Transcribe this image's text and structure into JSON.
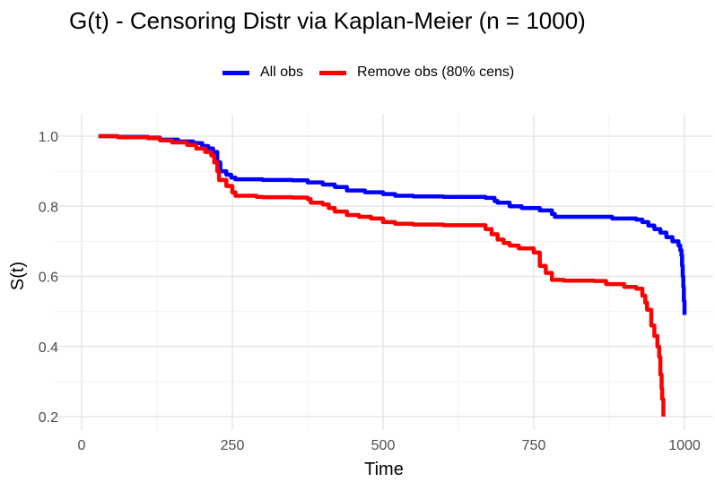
{
  "chart_data": {
    "type": "line",
    "title": "G(t) - Censoring Distr via Kaplan-Meier (n = 1000)",
    "xlabel": "Time",
    "ylabel": "S(t)",
    "xlim": [
      0,
      1000
    ],
    "ylim": [
      0.2,
      1.0
    ],
    "x_ticks": [
      0,
      250,
      500,
      750,
      1000
    ],
    "x_tick_labels": [
      "0",
      "250",
      "500",
      "750",
      "1000"
    ],
    "y_ticks": [
      0.2,
      0.4,
      0.6,
      0.8,
      1.0
    ],
    "y_tick_labels": [
      "0.2",
      "0.4",
      "0.6",
      "0.8",
      "1.0"
    ],
    "grid": true,
    "legend_position": "top",
    "series": [
      {
        "name": "All obs",
        "color": "#0000ff",
        "points": [
          [
            28,
            1.0
          ],
          [
            60,
            0.998
          ],
          [
            110,
            0.996
          ],
          [
            130,
            0.99
          ],
          [
            160,
            0.985
          ],
          [
            185,
            0.98
          ],
          [
            200,
            0.972
          ],
          [
            210,
            0.965
          ],
          [
            218,
            0.955
          ],
          [
            225,
            0.925
          ],
          [
            230,
            0.9
          ],
          [
            240,
            0.89
          ],
          [
            248,
            0.882
          ],
          [
            255,
            0.877
          ],
          [
            300,
            0.875
          ],
          [
            350,
            0.874
          ],
          [
            375,
            0.868
          ],
          [
            400,
            0.862
          ],
          [
            420,
            0.855
          ],
          [
            440,
            0.845
          ],
          [
            470,
            0.84
          ],
          [
            500,
            0.835
          ],
          [
            520,
            0.83
          ],
          [
            550,
            0.828
          ],
          [
            600,
            0.827
          ],
          [
            650,
            0.827
          ],
          [
            670,
            0.824
          ],
          [
            685,
            0.815
          ],
          [
            690,
            0.81
          ],
          [
            710,
            0.8
          ],
          [
            730,
            0.795
          ],
          [
            760,
            0.788
          ],
          [
            780,
            0.778
          ],
          [
            785,
            0.77
          ],
          [
            820,
            0.77
          ],
          [
            860,
            0.77
          ],
          [
            880,
            0.765
          ],
          [
            900,
            0.765
          ],
          [
            920,
            0.762
          ],
          [
            930,
            0.755
          ],
          [
            940,
            0.745
          ],
          [
            950,
            0.735
          ],
          [
            960,
            0.725
          ],
          [
            970,
            0.712
          ],
          [
            980,
            0.7
          ],
          [
            990,
            0.688
          ],
          [
            993,
            0.675
          ],
          [
            995,
            0.66
          ],
          [
            996,
            0.63
          ],
          [
            997,
            0.6
          ],
          [
            998,
            0.57
          ],
          [
            999,
            0.53
          ],
          [
            1000,
            0.49
          ]
        ]
      },
      {
        "name": "Remove obs (80% cens)",
        "color": "#ff0000",
        "points": [
          [
            28,
            1.0
          ],
          [
            60,
            0.997
          ],
          [
            110,
            0.994
          ],
          [
            130,
            0.988
          ],
          [
            150,
            0.982
          ],
          [
            175,
            0.975
          ],
          [
            190,
            0.965
          ],
          [
            205,
            0.955
          ],
          [
            215,
            0.945
          ],
          [
            220,
            0.925
          ],
          [
            225,
            0.9
          ],
          [
            228,
            0.875
          ],
          [
            240,
            0.858
          ],
          [
            250,
            0.84
          ],
          [
            255,
            0.83
          ],
          [
            290,
            0.827
          ],
          [
            300,
            0.826
          ],
          [
            350,
            0.825
          ],
          [
            375,
            0.82
          ],
          [
            380,
            0.81
          ],
          [
            400,
            0.805
          ],
          [
            410,
            0.795
          ],
          [
            420,
            0.785
          ],
          [
            440,
            0.775
          ],
          [
            460,
            0.77
          ],
          [
            480,
            0.765
          ],
          [
            500,
            0.755
          ],
          [
            520,
            0.75
          ],
          [
            550,
            0.748
          ],
          [
            600,
            0.746
          ],
          [
            660,
            0.746
          ],
          [
            670,
            0.735
          ],
          [
            680,
            0.72
          ],
          [
            690,
            0.705
          ],
          [
            700,
            0.695
          ],
          [
            710,
            0.688
          ],
          [
            725,
            0.68
          ],
          [
            750,
            0.668
          ],
          [
            760,
            0.63
          ],
          [
            770,
            0.61
          ],
          [
            780,
            0.59
          ],
          [
            800,
            0.588
          ],
          [
            850,
            0.587
          ],
          [
            870,
            0.578
          ],
          [
            900,
            0.57
          ],
          [
            920,
            0.565
          ],
          [
            930,
            0.545
          ],
          [
            935,
            0.525
          ],
          [
            938,
            0.505
          ],
          [
            945,
            0.46
          ],
          [
            950,
            0.43
          ],
          [
            955,
            0.4
          ],
          [
            958,
            0.37
          ],
          [
            960,
            0.32
          ],
          [
            962,
            0.28
          ],
          [
            963,
            0.25
          ],
          [
            965,
            0.2
          ]
        ]
      }
    ]
  }
}
